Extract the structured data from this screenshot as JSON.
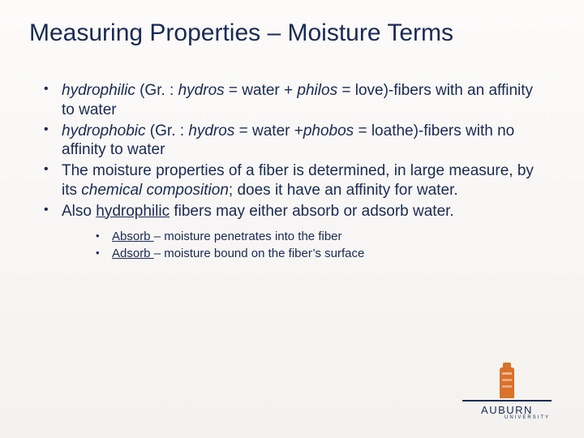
{
  "colors": {
    "text": "#1a2a56",
    "bg_top": "#fcfbfa",
    "bg_bottom": "#f4f2ef",
    "logo_orange": "#d9722a"
  },
  "title": "Measuring Properties – Moisture Terms",
  "bullets": {
    "b1": {
      "t1": "hydrophilic",
      "t2": "  (Gr. : ",
      "t3": "hydros",
      "t4": " = water + ",
      "t5": "philos",
      "t6": " = love)-fibers with an affinity to water"
    },
    "b2": {
      "t1": "hydrophobic",
      "t2": " (Gr. : ",
      "t3": "hydros",
      "t4": " = water +",
      "t5": "phobos",
      "t6": " = loathe)-fibers with no affinity to water"
    },
    "b3": {
      "t1": "The moisture properties of a fiber is determined, in large measure, by its ",
      "t2": "chemical composition",
      "t3": "; does it have an affinity for water."
    },
    "b4": {
      "t1": "Also ",
      "t2": "hydrophilic",
      "t3": " fibers may either absorb or adsorb water."
    }
  },
  "sub": {
    "s1": {
      "u": "Absorb ",
      "rest": "– moisture penetrates into the fiber"
    },
    "s2": {
      "u": "Adsorb ",
      "rest": "– moisture bound on the fiber’s surface"
    }
  },
  "logo": {
    "name": "AUBURN",
    "sub": "UNIVERSITY"
  }
}
